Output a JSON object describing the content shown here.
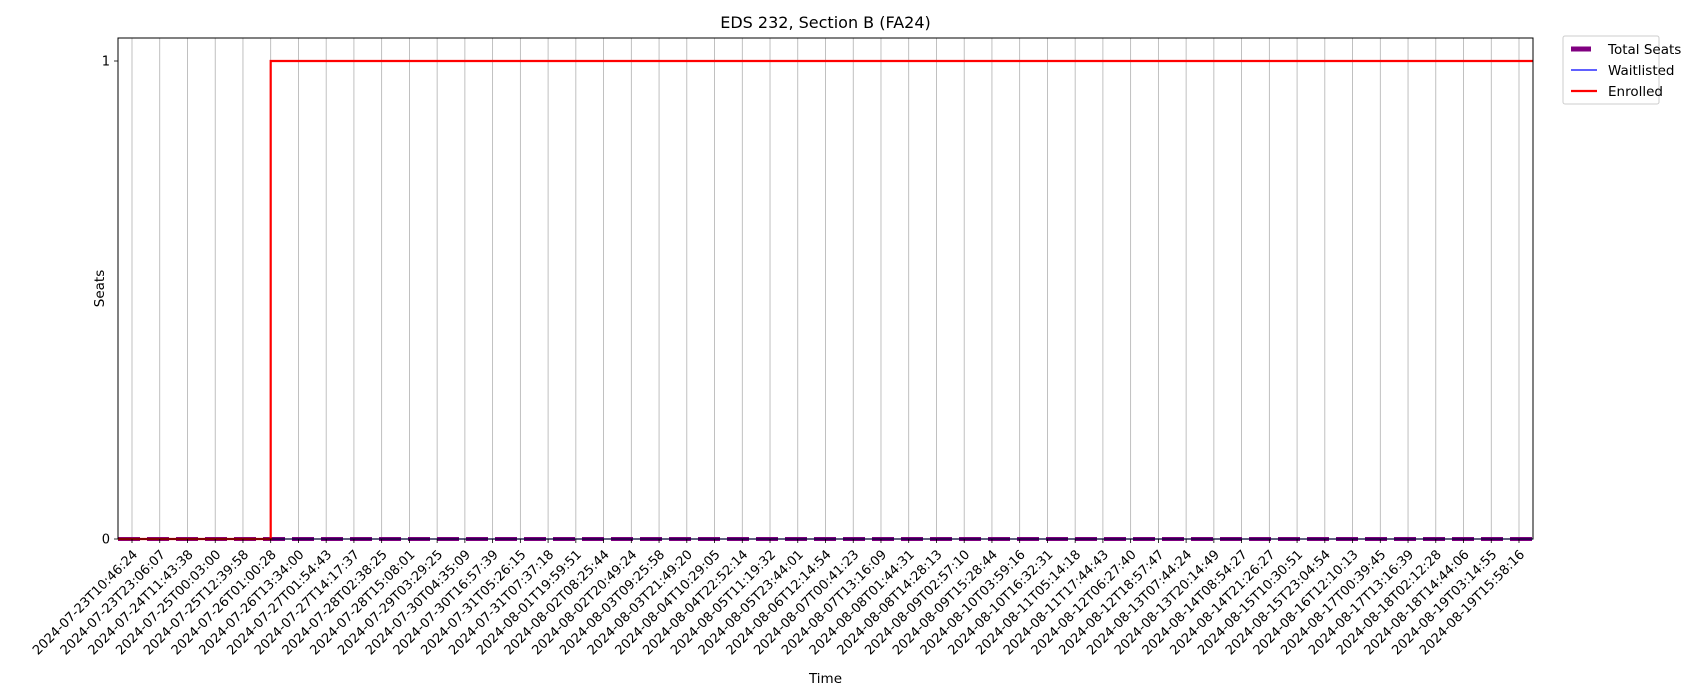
{
  "chart_data": {
    "type": "line",
    "title": "EDS 232, Section B (FA24)",
    "xlabel": "Time",
    "ylabel": "Seats",
    "x": [
      "2024-07-23T10:46:24",
      "2024-07-23T23:06:07",
      "2024-07-24T11:43:38",
      "2024-07-25T00:03:00",
      "2024-07-25T12:39:58",
      "2024-07-26T01:00:28",
      "2024-07-26T13:34:00",
      "2024-07-27T01:54:43",
      "2024-07-27T14:17:37",
      "2024-07-28T02:38:25",
      "2024-07-28T15:08:01",
      "2024-07-29T03:29:25",
      "2024-07-30T04:35:09",
      "2024-07-30T16:57:39",
      "2024-07-31T05:26:15",
      "2024-07-31T07:37:18",
      "2024-08-01T19:59:51",
      "2024-08-02T08:25:44",
      "2024-08-02T20:49:24",
      "2024-08-03T09:25:58",
      "2024-08-03T21:49:20",
      "2024-08-04T10:29:05",
      "2024-08-04T22:52:14",
      "2024-08-05T11:19:32",
      "2024-08-05T23:44:01",
      "2024-08-06T12:14:54",
      "2024-08-07T00:41:23",
      "2024-08-07T13:16:09",
      "2024-08-08T01:44:31",
      "2024-08-08T14:28:13",
      "2024-08-09T02:57:10",
      "2024-08-09T15:28:44",
      "2024-08-10T03:59:16",
      "2024-08-10T16:32:31",
      "2024-08-11T05:14:18",
      "2024-08-11T17:44:43",
      "2024-08-12T06:27:40",
      "2024-08-12T18:57:47",
      "2024-08-13T07:44:24",
      "2024-08-13T20:14:49",
      "2024-08-14T08:54:27",
      "2024-08-14T21:26:27",
      "2024-08-15T10:30:51",
      "2024-08-15T23:04:54",
      "2024-08-16T12:10:13",
      "2024-08-17T00:39:45",
      "2024-08-17T13:16:39",
      "2024-08-18T02:12:28",
      "2024-08-18T14:44:06",
      "2024-08-19T03:14:55",
      "2024-08-19T15:58:16"
    ],
    "series": [
      {
        "name": "Total Seats",
        "color": "#800080",
        "style": "dashed",
        "values": [
          0,
          0,
          0,
          0,
          0,
          0,
          0,
          0,
          0,
          0,
          0,
          0,
          0,
          0,
          0,
          0,
          0,
          0,
          0,
          0,
          0,
          0,
          0,
          0,
          0,
          0,
          0,
          0,
          0,
          0,
          0,
          0,
          0,
          0,
          0,
          0,
          0,
          0,
          0,
          0,
          0,
          0,
          0,
          0,
          0,
          0,
          0,
          0,
          0,
          0,
          0
        ]
      },
      {
        "name": "Waitlisted",
        "color": "#0000ff",
        "style": "solid-thin",
        "values": [
          0,
          0,
          0,
          0,
          0,
          0,
          0,
          0,
          0,
          0,
          0,
          0,
          0,
          0,
          0,
          0,
          0,
          0,
          0,
          0,
          0,
          0,
          0,
          0,
          0,
          0,
          0,
          0,
          0,
          0,
          0,
          0,
          0,
          0,
          0,
          0,
          0,
          0,
          0,
          0,
          0,
          0,
          0,
          0,
          0,
          0,
          0,
          0,
          0,
          0,
          0
        ]
      },
      {
        "name": "Enrolled",
        "color": "#ff0000",
        "style": "step",
        "values": [
          0,
          0,
          0,
          0,
          0,
          1,
          1,
          1,
          1,
          1,
          1,
          1,
          1,
          1,
          1,
          1,
          1,
          1,
          1,
          1,
          1,
          1,
          1,
          1,
          1,
          1,
          1,
          1,
          1,
          1,
          1,
          1,
          1,
          1,
          1,
          1,
          1,
          1,
          1,
          1,
          1,
          1,
          1,
          1,
          1,
          1,
          1,
          1,
          1,
          1,
          1
        ]
      }
    ],
    "yticks": [
      "0",
      "1"
    ],
    "ylim": [
      0,
      1
    ],
    "grid": "vertical",
    "legend": "outside-upper-right"
  }
}
